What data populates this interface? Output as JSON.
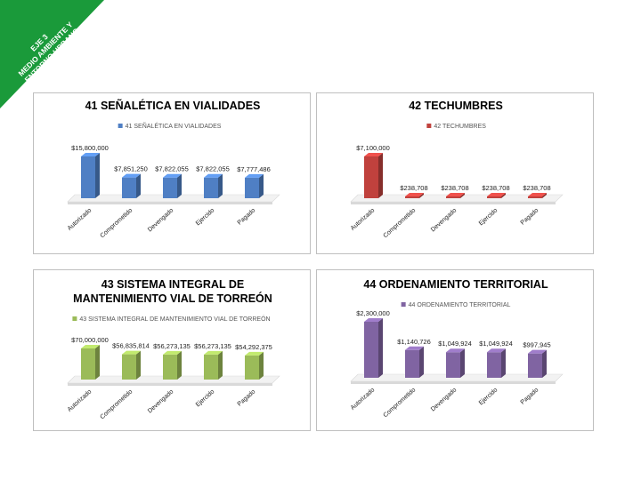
{
  "banner": {
    "line1": "EJE 3",
    "line2": "MEDIO AMBIENTE Y",
    "line3": "ENTORNO URBANO",
    "color": "#1a9a3a"
  },
  "chart_data": [
    {
      "type": "bar",
      "title_lines": [
        "41 SEÑALÉTICA EN VIALIDADES"
      ],
      "legend": "41 SEÑALÉTICA EN VIALIDADES",
      "color": "#4f7fc4",
      "categories": [
        "Autorizado",
        "Comprometido",
        "Devengado",
        "Ejercido",
        "Pagado"
      ],
      "values": [
        15800000,
        7851250,
        7822055,
        7822055,
        7777486
      ],
      "labels": [
        "$15,800,000",
        "$7,851,250",
        "$7,822,055",
        "$7,822,055",
        "$7,777,486"
      ],
      "ymax": 15800000
    },
    {
      "type": "bar",
      "title_lines": [
        "42 TECHUMBRES"
      ],
      "legend": "42 TECHUMBRES",
      "color": "#c0413d",
      "categories": [
        "Autorizado",
        "Comprometido",
        "Devengado",
        "Ejercido",
        "Pagado"
      ],
      "values": [
        7100000,
        238708,
        238708,
        238708,
        238708
      ],
      "labels": [
        "$7,100,000",
        "$238,708",
        "$238,708",
        "$238,708",
        "$238,708"
      ],
      "ymax": 7100000
    },
    {
      "type": "bar",
      "title_lines": [
        "43 SISTEMA INTEGRAL DE",
        "MANTENIMIENTO VIAL DE TORREÓN"
      ],
      "legend": "43 SISTEMA INTEGRAL DE MANTENIMIENTO VIAL DE TORREÓN",
      "color": "#9bbb59",
      "categories": [
        "Autorizado",
        "Comprometido",
        "Devengado",
        "Ejercido",
        "Pagado"
      ],
      "values": [
        70000000,
        56835814,
        56273135,
        56273135,
        54292375
      ],
      "labels": [
        "$70,000,000",
        "$56,835,814",
        "$56,273,135",
        "$56,273,135",
        "$54,292,375"
      ],
      "ymax": 70000000
    },
    {
      "type": "bar",
      "title_lines": [
        "44 ORDENAMIENTO TERRITORIAL"
      ],
      "legend": "44 ORDENAMIENTO TERRITORIAL",
      "color": "#8064a2",
      "categories": [
        "Autorizado",
        "Comprometido",
        "Devengado",
        "Ejercido",
        "Pagado"
      ],
      "values": [
        2300000,
        1140726,
        1049924,
        1049924,
        997945
      ],
      "labels": [
        "$2,300,000",
        "$1,140,726",
        "$1,049,924",
        "$1,049,924",
        "$997,945"
      ],
      "ymax": 2300000
    }
  ]
}
